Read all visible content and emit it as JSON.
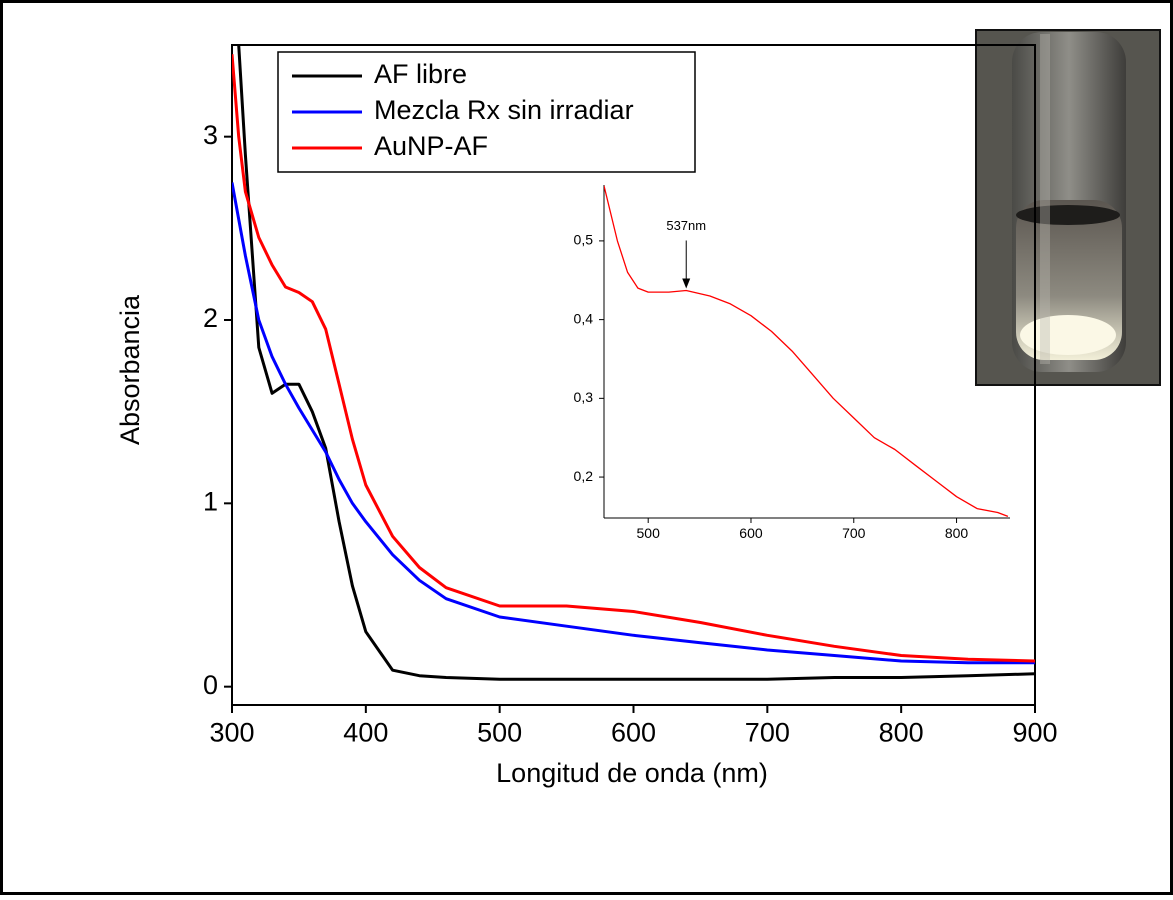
{
  "chart_data": [
    {
      "type": "line",
      "x_label": "Longitud de onda (nm)",
      "y_label": "Absorbancia",
      "x": [
        300,
        305,
        310,
        320,
        330,
        340,
        350,
        360,
        370,
        380,
        390,
        400,
        420,
        440,
        460,
        500,
        550,
        600,
        650,
        700,
        750,
        800,
        850,
        900
      ],
      "series": [
        {
          "name": "AF libre",
          "color": "#000000",
          "values": [
            null,
            3.5,
            2.9,
            1.85,
            1.6,
            1.65,
            1.65,
            1.5,
            1.3,
            0.9,
            0.55,
            0.3,
            0.09,
            0.06,
            0.05,
            0.04,
            0.04,
            0.04,
            0.04,
            0.04,
            0.05,
            0.05,
            0.06,
            0.07
          ]
        },
        {
          "name": "Mezcla Rx sin irradiar",
          "color": "#0000ff",
          "values": [
            2.75,
            2.55,
            2.35,
            2.0,
            1.8,
            1.65,
            1.52,
            1.4,
            1.28,
            1.13,
            1.0,
            0.9,
            0.72,
            0.58,
            0.48,
            0.38,
            0.33,
            0.28,
            0.24,
            0.2,
            0.17,
            0.14,
            0.13,
            0.13
          ]
        },
        {
          "name": "AuNP-AF",
          "color": "#ff0000",
          "values": [
            3.45,
            3.0,
            2.7,
            2.45,
            2.3,
            2.18,
            2.15,
            2.1,
            1.95,
            1.65,
            1.35,
            1.1,
            0.82,
            0.65,
            0.54,
            0.44,
            0.44,
            0.41,
            0.35,
            0.28,
            0.22,
            0.17,
            0.15,
            0.14
          ]
        }
      ],
      "xlim": [
        300,
        900
      ],
      "xticks": [
        300,
        400,
        500,
        600,
        700,
        800,
        900
      ],
      "ylim": [
        -0.1,
        3.5
      ],
      "yticks": [
        0,
        1,
        2,
        3
      ],
      "legend": "top-left"
    },
    {
      "type": "line",
      "x": [
        457,
        470,
        480,
        490,
        500,
        520,
        537,
        560,
        580,
        600,
        620,
        640,
        660,
        680,
        700,
        720,
        740,
        760,
        780,
        800,
        820,
        840,
        850
      ],
      "series": [
        {
          "color": "#ff0000",
          "values": [
            0.57,
            0.5,
            0.46,
            0.44,
            0.435,
            0.435,
            0.437,
            0.43,
            0.42,
            0.405,
            0.385,
            0.36,
            0.33,
            0.3,
            0.275,
            0.25,
            0.235,
            0.215,
            0.195,
            0.175,
            0.16,
            0.155,
            0.15
          ]
        }
      ],
      "xlim": [
        457,
        852
      ],
      "xticks": [
        500,
        600,
        700,
        800
      ],
      "ylim": [
        0.148,
        0.571
      ],
      "yticks": [
        {
          "value": 0.2,
          "label": "0,2"
        },
        {
          "value": 0.3,
          "label": "0,3"
        },
        {
          "value": 0.4,
          "label": "0,4"
        },
        {
          "value": 0.5,
          "label": "0,5"
        }
      ],
      "annotation": {
        "text": "537nm",
        "x": 537,
        "y": 0.437
      }
    }
  ]
}
